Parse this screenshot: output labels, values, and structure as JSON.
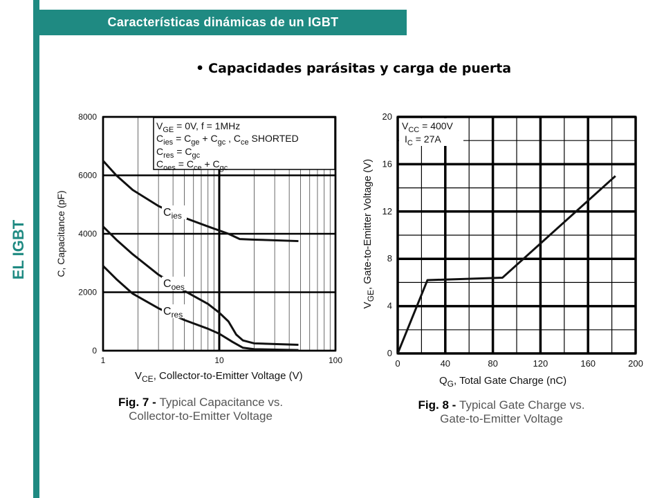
{
  "slide": {
    "side_label": "EL IGBT",
    "title": "Características dinámicas de un IGBT",
    "bullet": "•",
    "subtitle": "Capacidades parásitas y carga de puerta",
    "accent_color": "#1f8a82"
  },
  "chart_data": [
    {
      "type": "line",
      "x_scale": "log",
      "xlim": [
        1,
        100
      ],
      "ylim": [
        0,
        8000
      ],
      "x_ticks": [
        1,
        10,
        100
      ],
      "y_ticks": [
        0,
        2000,
        4000,
        6000,
        8000
      ],
      "xlabel_main": "V",
      "xlabel_sub": "CE",
      "xlabel_rest": ", Collector-to-Emitter Voltage (V)",
      "ylabel": "C, Capacitance (pF)",
      "grid": true,
      "series": [
        {
          "name_main": "C",
          "name_sub": "ies",
          "x": [
            1,
            1.3,
            1.8,
            3,
            5,
            8,
            12,
            15,
            20,
            48
          ],
          "y": [
            6500,
            6000,
            5500,
            4950,
            4550,
            4250,
            4000,
            3820,
            3800,
            3750
          ]
        },
        {
          "name_main": "C",
          "name_sub": "oes",
          "x": [
            1,
            1.3,
            1.8,
            3,
            5,
            8,
            10,
            12,
            14,
            16,
            20,
            48
          ],
          "y": [
            4250,
            3800,
            3300,
            2600,
            2050,
            1600,
            1300,
            1000,
            550,
            350,
            250,
            200
          ]
        },
        {
          "name_main": "C",
          "name_sub": "res",
          "x": [
            1,
            1.3,
            1.8,
            3,
            5,
            8,
            10,
            13,
            16,
            20,
            48
          ],
          "y": [
            2900,
            2450,
            1950,
            1450,
            1050,
            750,
            580,
            300,
            100,
            50,
            20
          ]
        }
      ],
      "annotation_lines": [
        [
          {
            "t": "V",
            "s": false
          },
          {
            "t": "GE",
            "s": true
          },
          {
            "t": " = 0V,        f = 1MHz",
            "s": false
          }
        ],
        [
          {
            "t": "C",
            "s": false
          },
          {
            "t": "ies",
            "s": true
          },
          {
            "t": " = C",
            "s": false
          },
          {
            "t": "ge",
            "s": true
          },
          {
            "t": " + C",
            "s": false
          },
          {
            "t": "gc",
            "s": true
          },
          {
            "t": " ,   C",
            "s": false
          },
          {
            "t": "ce",
            "s": true
          },
          {
            "t": "   SHORTED",
            "s": false
          }
        ],
        [
          {
            "t": "C",
            "s": false
          },
          {
            "t": "res",
            "s": true
          },
          {
            "t": " = C",
            "s": false
          },
          {
            "t": "gc",
            "s": true
          }
        ],
        [
          {
            "t": "C",
            "s": false
          },
          {
            "t": "oes",
            "s": true
          },
          {
            "t": " = C",
            "s": false
          },
          {
            "t": "ce",
            "s": true
          },
          {
            "t": " + C",
            "s": false
          },
          {
            "t": "gc",
            "s": true
          }
        ]
      ],
      "caption_bold": "Fig. 7 - ",
      "caption_line1": "Typical Capacitance vs.",
      "caption_line2": "Collector-to-Emitter Voltage"
    },
    {
      "type": "line",
      "xlim": [
        0,
        200
      ],
      "ylim": [
        0,
        20
      ],
      "x_ticks": [
        0,
        40,
        80,
        120,
        160,
        200
      ],
      "y_ticks": [
        0,
        4,
        8,
        12,
        16,
        20
      ],
      "xlabel_main": "Q",
      "xlabel_sub": "G",
      "xlabel_rest": ", Total Gate Charge (nC)",
      "ylabel_main": "V",
      "ylabel_sub": "GE",
      "ylabel_rest": ", Gate-to-Emitter Voltage (V)",
      "grid": true,
      "series": [
        {
          "x": [
            0,
            25,
            88,
            183
          ],
          "y": [
            0,
            6.2,
            6.4,
            15
          ]
        }
      ],
      "annotation_lines": [
        [
          {
            "t": "V",
            "s": false
          },
          {
            "t": "CC",
            "s": true
          },
          {
            "t": " = 400V",
            "s": false
          }
        ],
        [
          {
            "t": "I",
            "s": false
          },
          {
            "t": "C",
            "s": true
          },
          {
            "t": "   = 27A",
            "s": false
          }
        ]
      ],
      "caption_bold": "Fig. 8 - ",
      "caption_line1": "Typical Gate Charge vs.",
      "caption_line2": "Gate-to-Emitter Voltage"
    }
  ]
}
